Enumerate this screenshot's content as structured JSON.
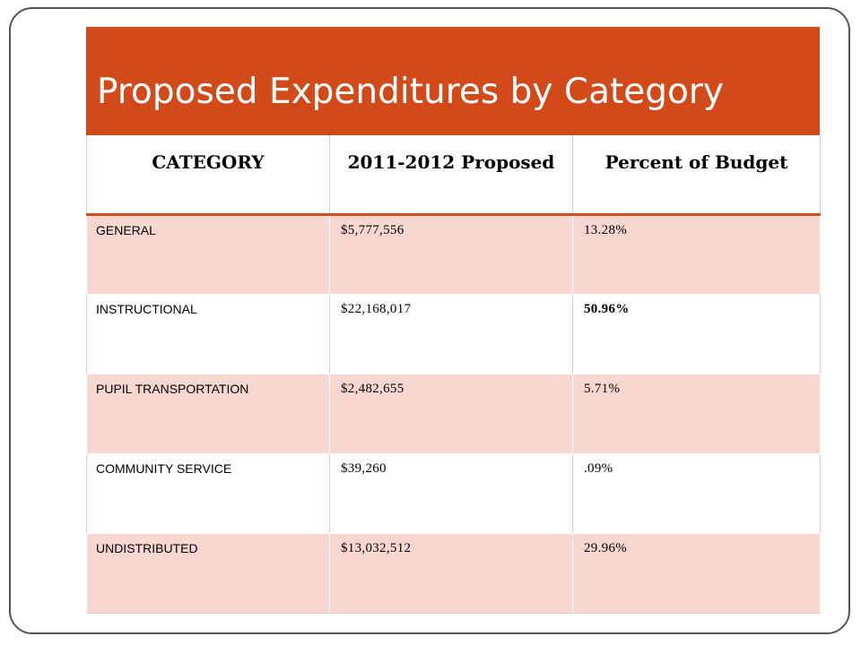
{
  "slide": {
    "title": "Proposed Expenditures by Category"
  },
  "table": {
    "headers": [
      "CATEGORY",
      "2011-2012 Proposed",
      "Percent of Budget"
    ],
    "rows": [
      [
        "GENERAL",
        "$5,777,556",
        "13.28%"
      ],
      [
        "INSTRUCTIONAL",
        "$22,168,017",
        "50.96%"
      ],
      [
        "PUPIL TRANSPORTATION",
        "$2,482,655",
        "5.71%"
      ],
      [
        "COMMUNITY SERVICE",
        "$39,260",
        ".09%"
      ],
      [
        "UNDISTRIBUTED",
        "$13,032,512",
        "29.96%"
      ]
    ]
  },
  "colors": {
    "accent": "#d2491a",
    "band": "#f7d7cf"
  }
}
